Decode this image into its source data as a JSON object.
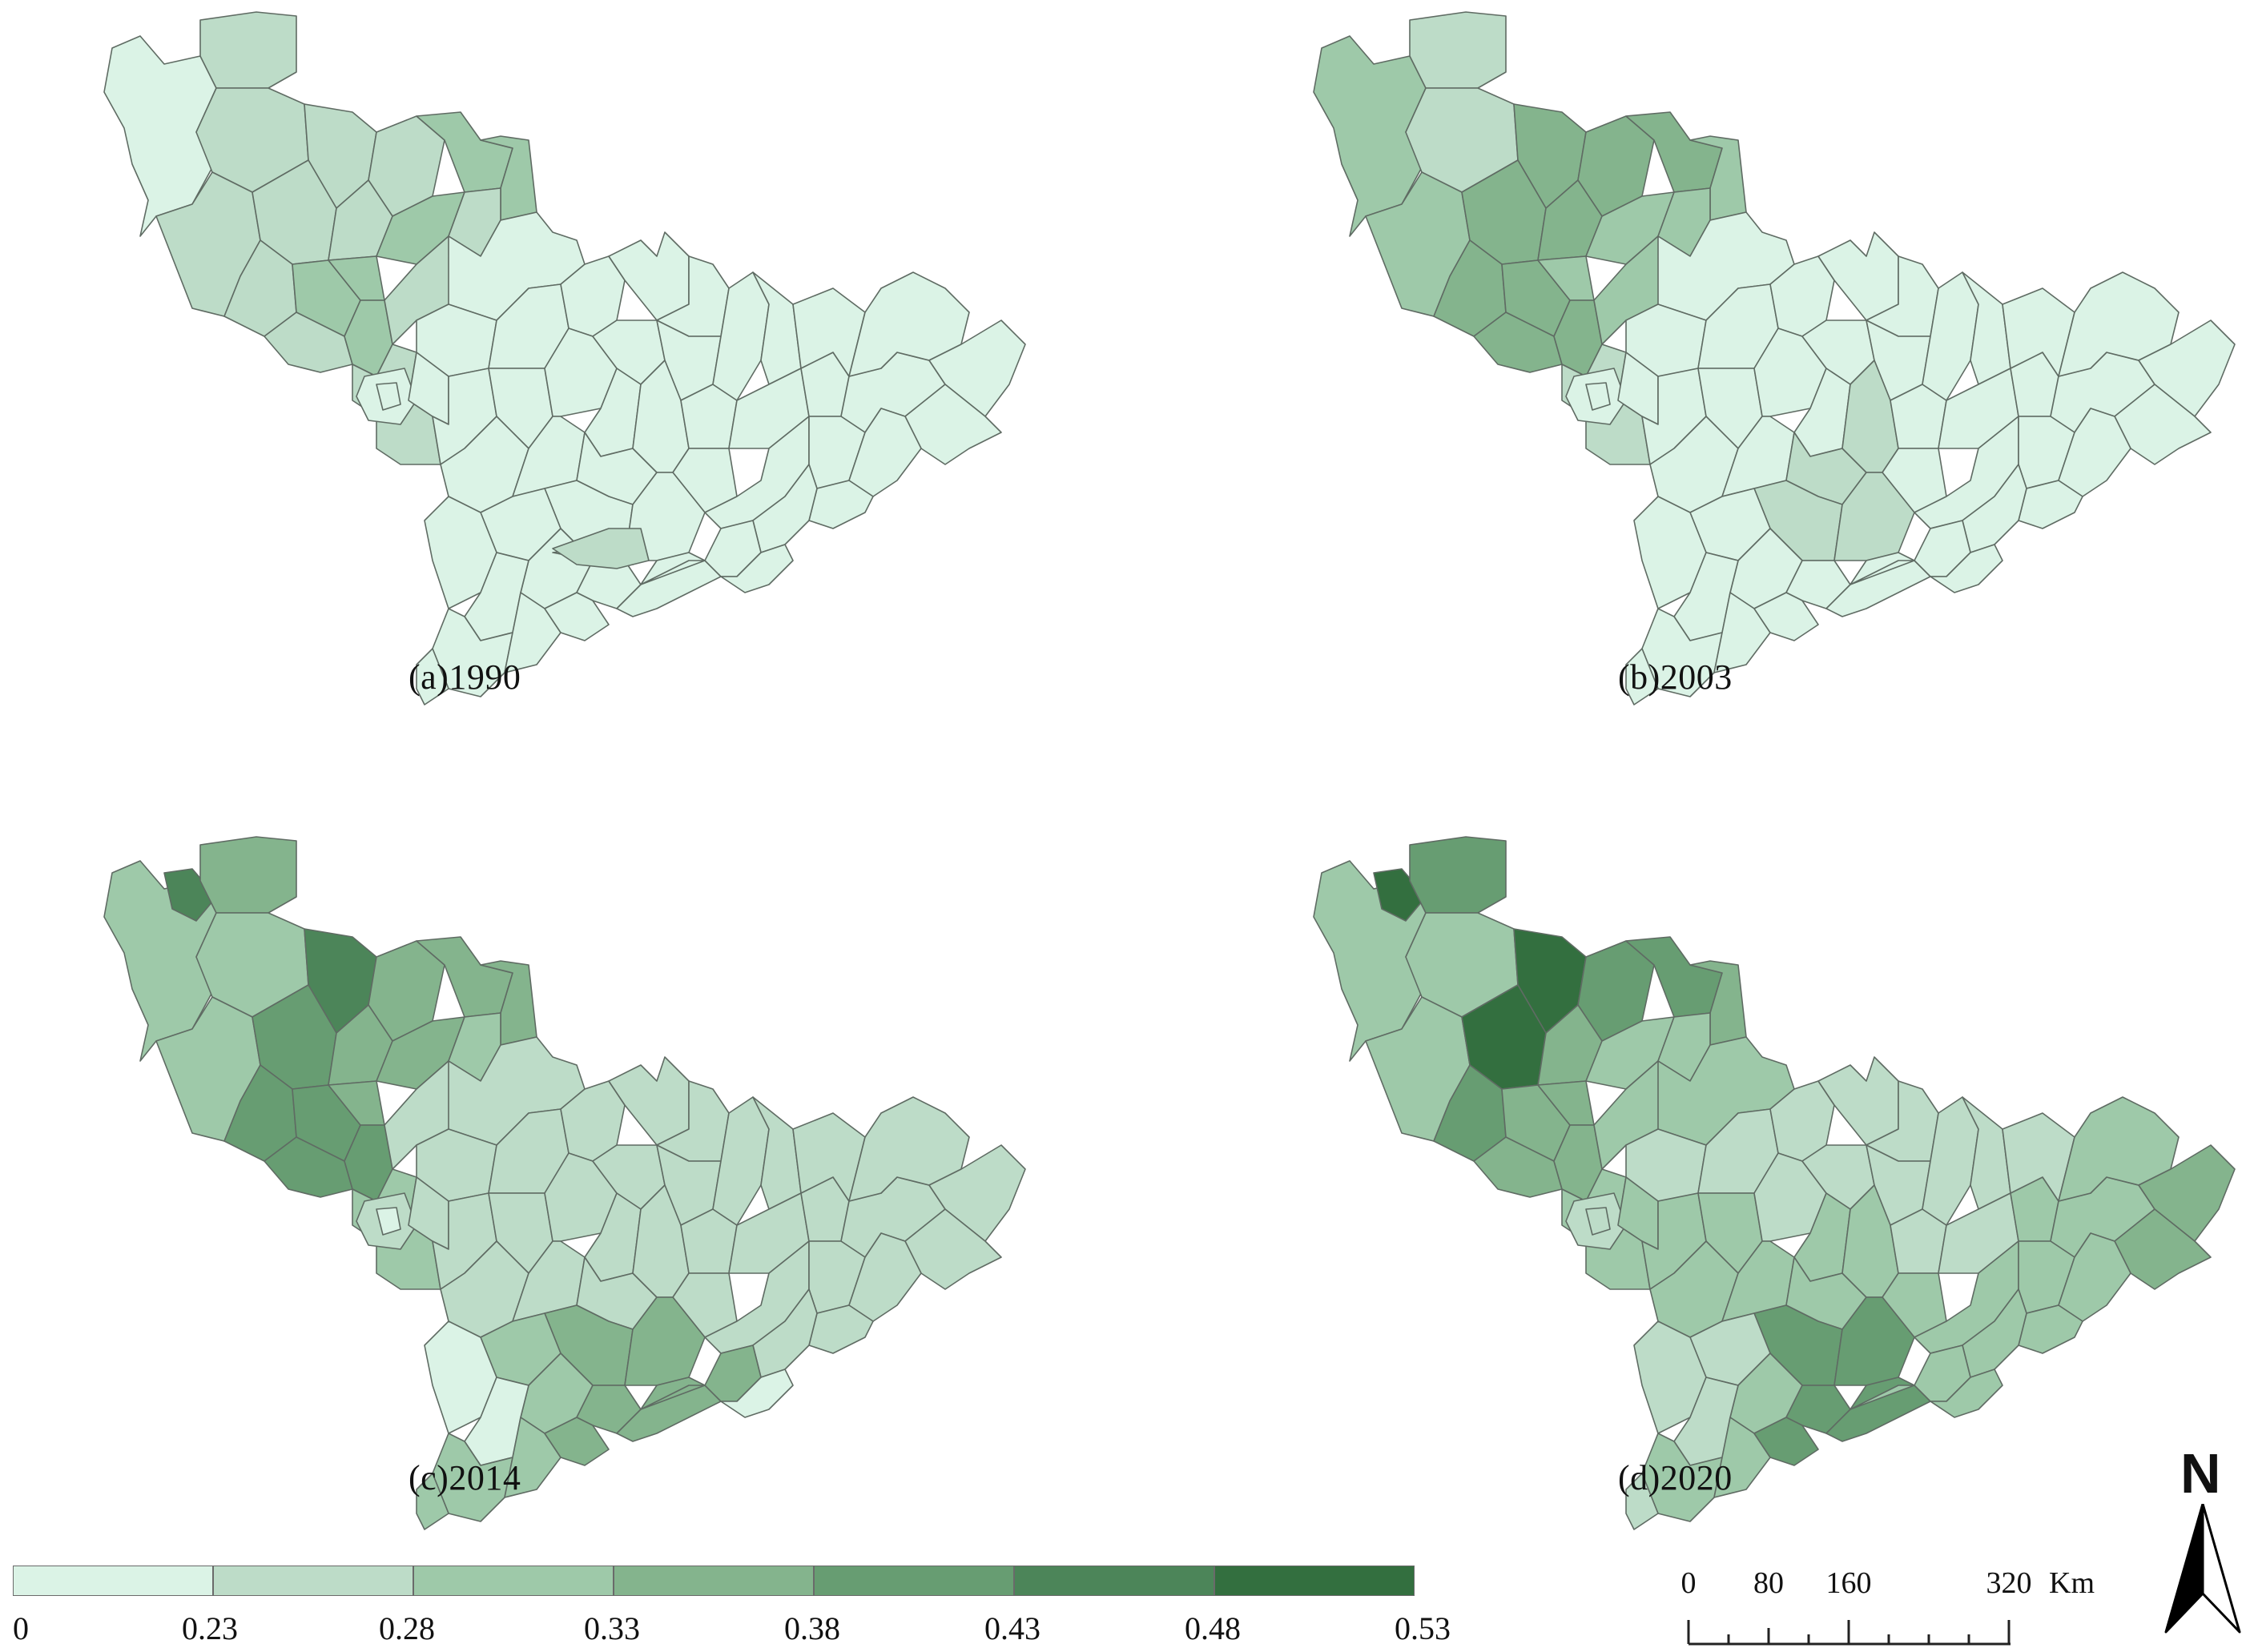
{
  "panels": [
    {
      "caption": "(a)1990"
    },
    {
      "caption": "(b)2003"
    },
    {
      "caption": "(c)2014"
    },
    {
      "caption": "(d)2020"
    }
  ],
  "legend": {
    "breaks": [
      "0",
      "0.23",
      "0.28",
      "0.33",
      "0.38",
      "0.43",
      "0.48",
      "0.53"
    ],
    "colors": [
      "#dbf3e6",
      "#bddcc8",
      "#9ec9a9",
      "#84b48d",
      "#679d72",
      "#4c8559",
      "#336f3f"
    ]
  },
  "scale_bar": {
    "ticks": [
      "0",
      "80",
      "160",
      "320"
    ],
    "unit": "Km"
  },
  "north_arrow": {
    "letter": "N"
  },
  "map_colors": {
    "stroke": "#5f6b63"
  }
}
